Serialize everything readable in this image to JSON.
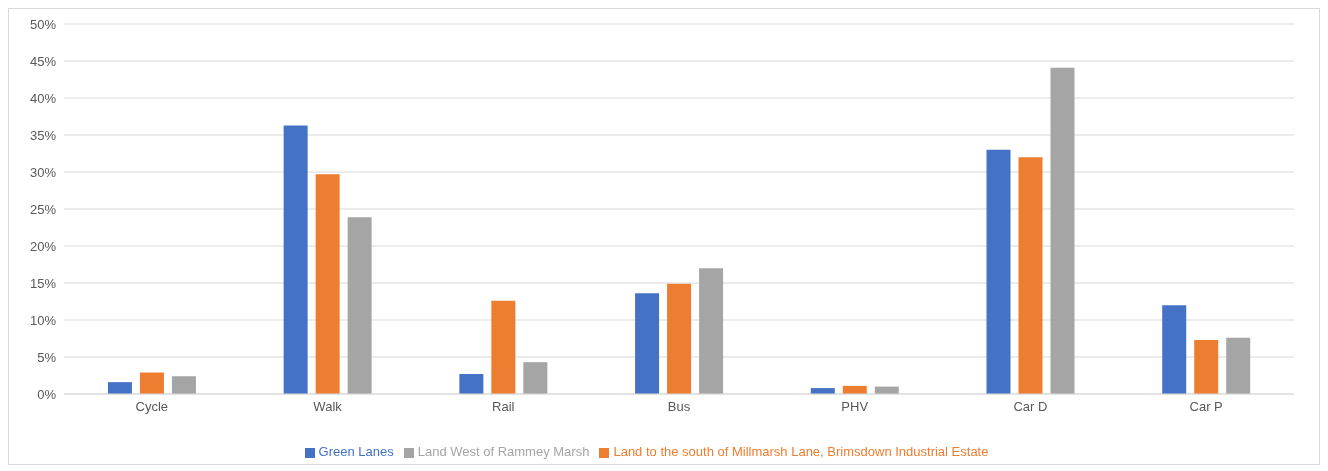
{
  "chart_data": {
    "type": "bar",
    "categories": [
      "Cycle",
      "Walk",
      "Rail",
      "Bus",
      "PHV",
      "Car D",
      "Car P"
    ],
    "series": [
      {
        "name": "Green Lanes",
        "color": "#4472c4",
        "values": [
          1.6,
          36.3,
          2.7,
          13.6,
          0.8,
          33,
          12
        ]
      },
      {
        "name": "Land to the south of Millmarsh Lane, Brimsdown Industrial Estate",
        "color": "#ed7d31",
        "values": [
          2.9,
          29.7,
          12.6,
          14.9,
          1.1,
          32,
          7.3
        ]
      },
      {
        "name": "Land West of Rammey Marsh",
        "color": "#a5a5a5",
        "values": [
          2.4,
          23.9,
          4.3,
          17,
          1,
          44.1,
          7.6
        ]
      }
    ],
    "ylim": [
      0,
      50
    ],
    "yticks": [
      {
        "value": 0,
        "label": "0%"
      },
      {
        "value": 5,
        "label": "5%"
      },
      {
        "value": 10,
        "label": "10%"
      },
      {
        "value": 15,
        "label": "15%"
      },
      {
        "value": 20,
        "label": "20%"
      },
      {
        "value": 25,
        "label": "25%"
      },
      {
        "value": 30,
        "label": "30%"
      },
      {
        "value": 35,
        "label": "35%"
      },
      {
        "value": 40,
        "label": "40%"
      },
      {
        "value": 45,
        "label": "45%"
      },
      {
        "value": 50,
        "label": "50%"
      }
    ],
    "grid": "y",
    "legend": "bottom"
  }
}
